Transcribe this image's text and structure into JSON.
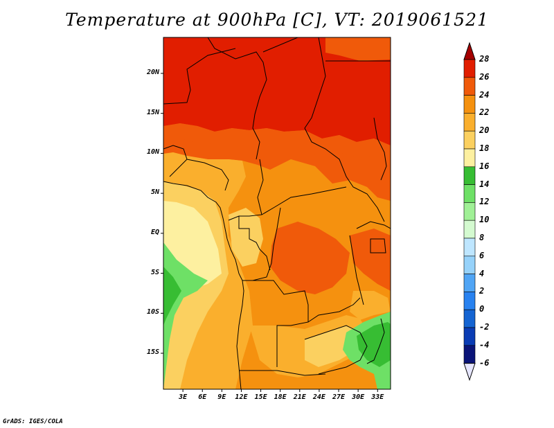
{
  "title": "Temperature at 900hPa [C], VT: 2019061521",
  "credit": "GrADS: IGES/COLA",
  "map": {
    "lat_ticks": [
      "20N",
      "15N",
      "10N",
      "5N",
      "EQ",
      "5S",
      "10S",
      "15S"
    ],
    "lon_ticks": [
      "3E",
      "6E",
      "9E",
      "12E",
      "15E",
      "18E",
      "21E",
      "24E",
      "27E",
      "30E",
      "33E"
    ],
    "lon_range": [
      0,
      35
    ],
    "lat_range": [
      -19.5,
      24.5
    ]
  },
  "colorbar": {
    "labels": [
      "28",
      "26",
      "24",
      "22",
      "20",
      "18",
      "16",
      "14",
      "12",
      "10",
      "8",
      "6",
      "4",
      "2",
      "0",
      "-2",
      "-4",
      "-6"
    ],
    "colors": [
      "#a50000",
      "#e11e00",
      "#f05a0a",
      "#f5910f",
      "#faaf2d",
      "#fbd060",
      "#fdf0a0",
      "#37bd33",
      "#6ee066",
      "#a0f096",
      "#d4fad0",
      "#bee6ff",
      "#96d2fa",
      "#50a5f5",
      "#2882f0",
      "#1464d2",
      "#0a3cb4",
      "#0a1478",
      "#e6e6ff"
    ]
  }
}
